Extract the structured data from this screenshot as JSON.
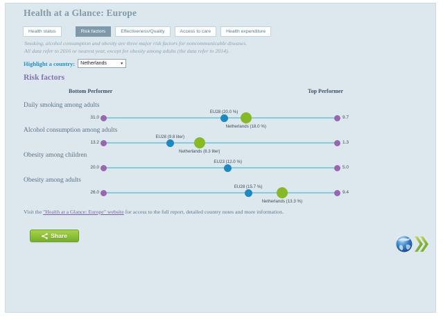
{
  "window": {
    "title": "Health at a Glance: Europe"
  },
  "tabs": [
    {
      "label": "Health status",
      "active": false
    },
    {
      "label": "Risk factors",
      "active": true
    },
    {
      "label": "Effectiveness/Quality",
      "active": false
    },
    {
      "label": "Access to care",
      "active": false
    },
    {
      "label": "Health expenditure",
      "active": false
    }
  ],
  "note": {
    "line1": "Smoking, alcohol consumption and obesity are three major risk factors for noncommunicable diseases.",
    "line2": "All data refer to 2016 or nearest year, except for obesity among adults (the data refer to 2014)."
  },
  "highlight": {
    "label": "Highlight a country:",
    "selected_country": "Netherlands",
    "dropdown_icon": "▼"
  },
  "section": {
    "title": "Risk factors",
    "bottom_header": "Bottom Performer",
    "top_header": "Top Performer"
  },
  "chart_data": {
    "type": "dot_plot",
    "orientation": "bottom performer (left, worst value) to top performer (right, best value)",
    "rows": [
      {
        "category": "Daily smoking among adults",
        "bottom_value": 31.0,
        "top_value": 9.7,
        "eu": {
          "label": "EU28 (20.0 %)",
          "value": 20.0
        },
        "country": {
          "label": "Netherlands (18.0 %)",
          "value": 18.0
        }
      },
      {
        "category": "Alcohol consumption among adults",
        "bottom_value": 13.2,
        "top_value": 1.3,
        "eu": {
          "label": "EU28 (9.8 liter)",
          "value": 9.8
        },
        "country": {
          "label": "Netherlands (8.3 liter)",
          "value": 8.3
        }
      },
      {
        "category": "Obesity among children",
        "bottom_value": 20.0,
        "top_value": 5.0,
        "eu": {
          "label": "EU23 (12.0 %)",
          "value": 12.0
        },
        "country": null
      },
      {
        "category": "Obesity among adults",
        "bottom_value": 26.0,
        "top_value": 9.4,
        "eu": {
          "label": "EU28 (15.7 %)",
          "value": 15.7
        },
        "country": {
          "label": "Netherlands (13.3 %)",
          "value": 13.3
        }
      }
    ],
    "legend": {
      "endpoint_color": "#9767b0",
      "eu_color": "#1e88c0",
      "country_color": "#87b826",
      "line_color": "#84ccd9"
    }
  },
  "footer": {
    "prefix": "Visit the ",
    "link_text": "\"Health at a Glance: Europe\" website",
    "suffix": " for access to the full report, detailed country notes and more information."
  },
  "share_button": {
    "label": "Share"
  },
  "colors": {
    "card_background": "#dce8ee",
    "active_tab": "#7e99aa",
    "title": "#7e9aac",
    "highlight_label": "#1e8fcc",
    "section_title": "#8373b3",
    "share_green": "#76b02a"
  }
}
